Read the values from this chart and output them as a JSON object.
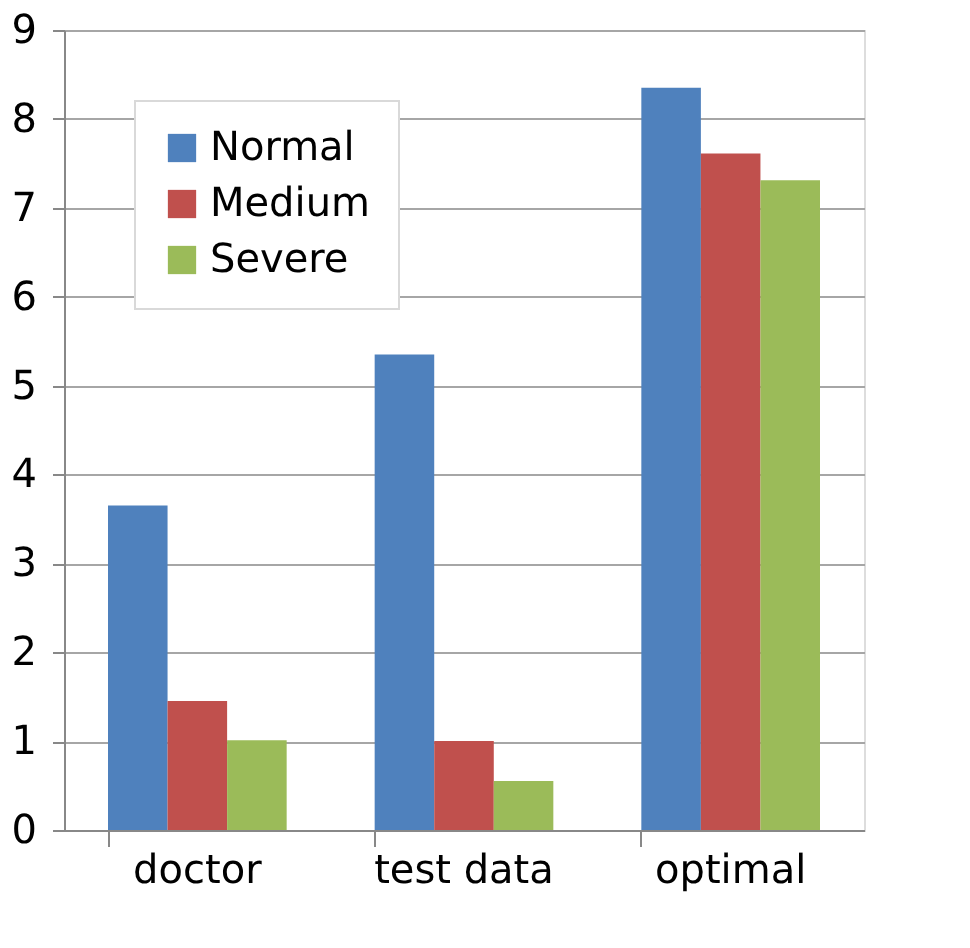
{
  "chart_data": {
    "type": "bar",
    "categories": [
      "doctor",
      "test data",
      "optimal"
    ],
    "series": [
      {
        "name": "Normal",
        "color": "#4f81bd",
        "values": [
          3.65,
          5.35,
          8.35
        ]
      },
      {
        "name": "Medium",
        "color": "#c0504d",
        "values": [
          1.45,
          1.0,
          7.61
        ]
      },
      {
        "name": "Severe",
        "color": "#9bbb59",
        "values": [
          1.01,
          0.55,
          7.31
        ]
      }
    ],
    "ylim": [
      0,
      9
    ],
    "yticks": [
      0,
      1,
      2,
      3,
      4,
      5,
      6,
      7,
      8,
      9
    ],
    "grid": "y",
    "legend": "top left"
  }
}
